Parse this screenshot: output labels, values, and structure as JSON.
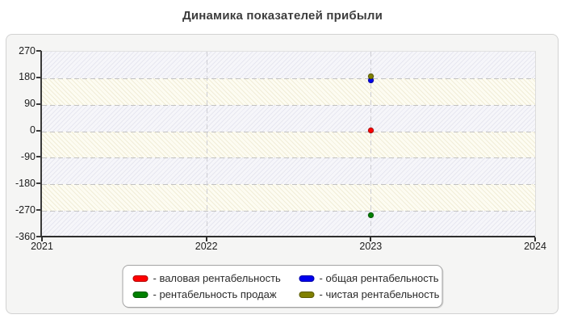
{
  "page": {
    "title": "Динамика показателей прибыли"
  },
  "chart_data": {
    "type": "scatter",
    "title": "Динамика показателей прибыли",
    "xlabel": "",
    "ylabel": "",
    "xlim": [
      2021,
      2024
    ],
    "ylim": [
      -360,
      270
    ],
    "x_ticks": [
      "2021",
      "2022",
      "2023",
      "2024"
    ],
    "y_ticks": [
      "270",
      "180",
      "90",
      "0",
      "-90",
      "-180",
      "-270",
      "-360"
    ],
    "grid": "dashed horizontal and vertical gridlines, interlaced background bands",
    "legend_position": "bottom-center",
    "series": [
      {
        "name": "валовая рентабельность",
        "color": "#ff0000",
        "points": [
          {
            "x": 2023,
            "y": 2
          }
        ]
      },
      {
        "name": "общая рентабельность",
        "color": "#0000ee",
        "points": [
          {
            "x": 2023,
            "y": 174
          }
        ]
      },
      {
        "name": "рентабельность продаж",
        "color": "#008000",
        "points": [
          {
            "x": 2023,
            "y": -286
          }
        ]
      },
      {
        "name": "чистая рентабельность",
        "color": "#808000",
        "points": [
          {
            "x": 2023,
            "y": 186
          }
        ]
      }
    ]
  },
  "legend": {
    "items": [
      {
        "text": "- валовая рентабельность",
        "color": "#ff0000"
      },
      {
        "text": "- общая рентабельность",
        "color": "#0000ee"
      },
      {
        "text": "- рентабельность продаж",
        "color": "#008000"
      },
      {
        "text": "- чистая рентабельность",
        "color": "#808000"
      }
    ]
  },
  "colors": {
    "title": "#3d3d3d",
    "panel_bg": "#f5f5f4",
    "band_cream": "#fdfcf2",
    "band_gray": "#f6f6fa",
    "gridline": "#c2c2c2",
    "axis": "#3a3a3a"
  }
}
